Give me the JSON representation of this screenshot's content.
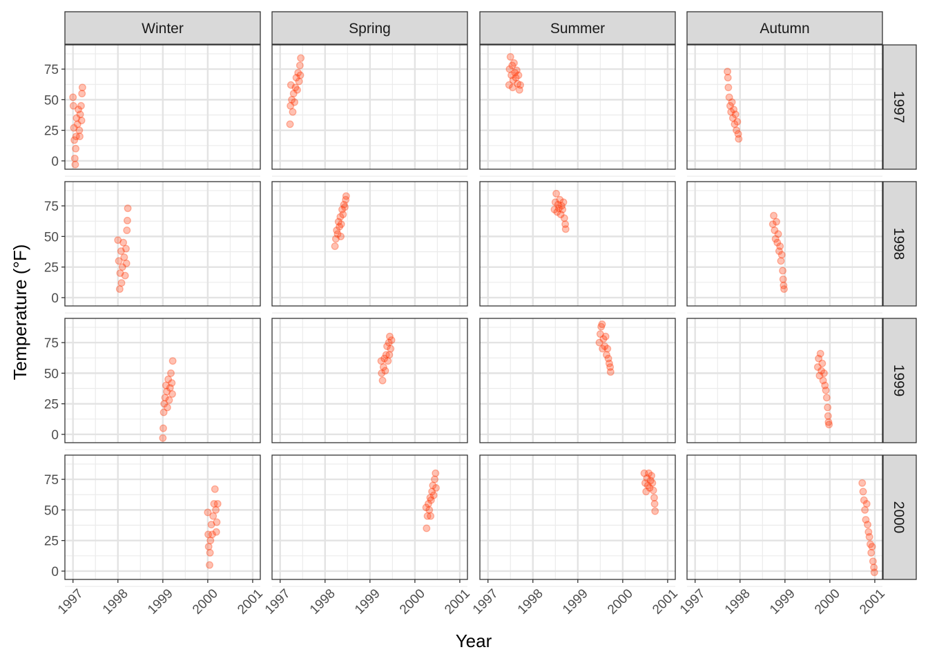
{
  "chart_data": {
    "type": "scatter",
    "title": "",
    "xlabel": "Year",
    "ylabel": "Temperature (°F)",
    "xlim": [
      1996.82,
      2001.17
    ],
    "ylim": [
      -6.8,
      94.8
    ],
    "x_ticks": [
      "1997",
      "1998",
      "1999",
      "2000",
      "2001"
    ],
    "y_ticks": [
      "0",
      "25",
      "50",
      "75"
    ],
    "grid": true,
    "point_color": "#ff3300",
    "point_alpha": 0.3,
    "facet_columns": [
      "Winter",
      "Spring",
      "Summer",
      "Autumn"
    ],
    "facet_rows": [
      "1997",
      "1998",
      "1999",
      "2000"
    ],
    "facets": [
      {
        "row": "1997",
        "col": "Winter",
        "points": [
          [
            1997.0,
            52
          ],
          [
            1997.01,
            45
          ],
          [
            1997.02,
            27
          ],
          [
            1997.03,
            17
          ],
          [
            1997.04,
            2
          ],
          [
            1997.05,
            -3
          ],
          [
            1997.06,
            10
          ],
          [
            1997.07,
            20
          ],
          [
            1997.08,
            35
          ],
          [
            1997.1,
            30
          ],
          [
            1997.12,
            42
          ],
          [
            1997.14,
            25
          ],
          [
            1997.16,
            38
          ],
          [
            1997.18,
            45
          ],
          [
            1997.2,
            55
          ],
          [
            1997.21,
            60
          ],
          [
            1997.19,
            33
          ],
          [
            1997.15,
            20
          ]
        ]
      },
      {
        "row": "1997",
        "col": "Spring",
        "points": [
          [
            1997.22,
            30
          ],
          [
            1997.23,
            45
          ],
          [
            1997.24,
            62
          ],
          [
            1997.26,
            50
          ],
          [
            1997.28,
            40
          ],
          [
            1997.3,
            55
          ],
          [
            1997.32,
            48
          ],
          [
            1997.34,
            60
          ],
          [
            1997.36,
            68
          ],
          [
            1997.38,
            58
          ],
          [
            1997.4,
            72
          ],
          [
            1997.42,
            65
          ],
          [
            1997.44,
            78
          ],
          [
            1997.46,
            84
          ],
          [
            1997.45,
            70
          ]
        ]
      },
      {
        "row": "1997",
        "col": "Summer",
        "points": [
          [
            1997.47,
            62
          ],
          [
            1997.48,
            75
          ],
          [
            1997.5,
            85
          ],
          [
            1997.52,
            70
          ],
          [
            1997.54,
            78
          ],
          [
            1997.56,
            66
          ],
          [
            1997.58,
            80
          ],
          [
            1997.6,
            72
          ],
          [
            1997.62,
            68
          ],
          [
            1997.64,
            74
          ],
          [
            1997.66,
            63
          ],
          [
            1997.68,
            70
          ],
          [
            1997.7,
            58
          ],
          [
            1997.72,
            62
          ],
          [
            1997.55,
            60
          ]
        ]
      },
      {
        "row": "1997",
        "col": "Autumn",
        "points": [
          [
            1997.72,
            73
          ],
          [
            1997.73,
            68
          ],
          [
            1997.74,
            60
          ],
          [
            1997.76,
            52
          ],
          [
            1997.78,
            45
          ],
          [
            1997.8,
            40
          ],
          [
            1997.82,
            48
          ],
          [
            1997.84,
            35
          ],
          [
            1997.86,
            42
          ],
          [
            1997.88,
            30
          ],
          [
            1997.9,
            38
          ],
          [
            1997.92,
            25
          ],
          [
            1997.94,
            32
          ],
          [
            1997.96,
            22
          ],
          [
            1997.97,
            18
          ]
        ]
      },
      {
        "row": "1998",
        "col": "Winter",
        "points": [
          [
            1998.0,
            47
          ],
          [
            1998.02,
            30
          ],
          [
            1998.04,
            7
          ],
          [
            1998.05,
            20
          ],
          [
            1998.07,
            38
          ],
          [
            1998.1,
            25
          ],
          [
            1998.12,
            45
          ],
          [
            1998.14,
            33
          ],
          [
            1998.16,
            18
          ],
          [
            1998.18,
            40
          ],
          [
            1998.2,
            55
          ],
          [
            1998.21,
            63
          ],
          [
            1998.22,
            73
          ],
          [
            1998.19,
            28
          ],
          [
            1998.08,
            12
          ]
        ]
      },
      {
        "row": "1998",
        "col": "Spring",
        "points": [
          [
            1998.22,
            42
          ],
          [
            1998.24,
            48
          ],
          [
            1998.26,
            55
          ],
          [
            1998.28,
            52
          ],
          [
            1998.3,
            62
          ],
          [
            1998.32,
            58
          ],
          [
            1998.34,
            66
          ],
          [
            1998.36,
            60
          ],
          [
            1998.38,
            72
          ],
          [
            1998.4,
            68
          ],
          [
            1998.42,
            76
          ],
          [
            1998.44,
            74
          ],
          [
            1998.46,
            80
          ],
          [
            1998.47,
            83
          ],
          [
            1998.35,
            50
          ]
        ]
      },
      {
        "row": "1998",
        "col": "Summer",
        "points": [
          [
            1998.48,
            72
          ],
          [
            1998.5,
            78
          ],
          [
            1998.52,
            85
          ],
          [
            1998.54,
            70
          ],
          [
            1998.56,
            76
          ],
          [
            1998.58,
            73
          ],
          [
            1998.6,
            80
          ],
          [
            1998.62,
            68
          ],
          [
            1998.64,
            75
          ],
          [
            1998.66,
            72
          ],
          [
            1998.68,
            78
          ],
          [
            1998.7,
            65
          ],
          [
            1998.72,
            60
          ],
          [
            1998.73,
            56
          ]
        ]
      },
      {
        "row": "1998",
        "col": "Autumn",
        "points": [
          [
            1998.73,
            60
          ],
          [
            1998.75,
            67
          ],
          [
            1998.77,
            55
          ],
          [
            1998.79,
            48
          ],
          [
            1998.81,
            62
          ],
          [
            1998.83,
            45
          ],
          [
            1998.85,
            52
          ],
          [
            1998.87,
            38
          ],
          [
            1998.89,
            42
          ],
          [
            1998.91,
            30
          ],
          [
            1998.93,
            35
          ],
          [
            1998.95,
            22
          ],
          [
            1998.96,
            15
          ],
          [
            1998.97,
            10
          ],
          [
            1998.98,
            7
          ]
        ]
      },
      {
        "row": "1999",
        "col": "Winter",
        "points": [
          [
            1999.0,
            -3
          ],
          [
            1999.01,
            5
          ],
          [
            1999.02,
            18
          ],
          [
            1999.03,
            25
          ],
          [
            1999.05,
            30
          ],
          [
            1999.07,
            40
          ],
          [
            1999.09,
            35
          ],
          [
            1999.1,
            22
          ],
          [
            1999.12,
            45
          ],
          [
            1999.14,
            28
          ],
          [
            1999.16,
            38
          ],
          [
            1999.18,
            50
          ],
          [
            1999.2,
            42
          ],
          [
            1999.22,
            60
          ],
          [
            1999.21,
            33
          ]
        ]
      },
      {
        "row": "1999",
        "col": "Spring",
        "points": [
          [
            1999.25,
            60
          ],
          [
            1999.26,
            50
          ],
          [
            1999.28,
            44
          ],
          [
            1999.3,
            55
          ],
          [
            1999.32,
            62
          ],
          [
            1999.34,
            52
          ],
          [
            1999.36,
            65
          ],
          [
            1999.38,
            72
          ],
          [
            1999.4,
            60
          ],
          [
            1999.42,
            75
          ],
          [
            1999.44,
            80
          ],
          [
            1999.46,
            70
          ],
          [
            1999.48,
            77
          ],
          [
            1999.43,
            65
          ]
        ]
      },
      {
        "row": "1999",
        "col": "Summer",
        "points": [
          [
            1999.48,
            75
          ],
          [
            1999.5,
            82
          ],
          [
            1999.52,
            88
          ],
          [
            1999.54,
            90
          ],
          [
            1999.55,
            70
          ],
          [
            1999.57,
            78
          ],
          [
            1999.6,
            72
          ],
          [
            1999.62,
            80
          ],
          [
            1999.64,
            65
          ],
          [
            1999.66,
            70
          ],
          [
            1999.68,
            62
          ],
          [
            1999.7,
            58
          ],
          [
            1999.72,
            55
          ],
          [
            1999.73,
            51
          ]
        ]
      },
      {
        "row": "1999",
        "col": "Autumn",
        "points": [
          [
            1999.73,
            55
          ],
          [
            1999.75,
            62
          ],
          [
            1999.77,
            48
          ],
          [
            1999.79,
            66
          ],
          [
            1999.81,
            52
          ],
          [
            1999.83,
            58
          ],
          [
            1999.85,
            44
          ],
          [
            1999.87,
            50
          ],
          [
            1999.89,
            40
          ],
          [
            1999.91,
            36
          ],
          [
            1999.93,
            30
          ],
          [
            1999.95,
            22
          ],
          [
            1999.96,
            15
          ],
          [
            1999.97,
            10
          ],
          [
            1999.98,
            8
          ]
        ]
      },
      {
        "row": "2000",
        "col": "Winter",
        "points": [
          [
            2000.0,
            48
          ],
          [
            2000.01,
            30
          ],
          [
            2000.02,
            20
          ],
          [
            2000.04,
            5
          ],
          [
            2000.06,
            25
          ],
          [
            2000.08,
            38
          ],
          [
            2000.1,
            30
          ],
          [
            2000.12,
            45
          ],
          [
            2000.14,
            55
          ],
          [
            2000.16,
            67
          ],
          [
            2000.18,
            50
          ],
          [
            2000.2,
            40
          ],
          [
            2000.22,
            55
          ],
          [
            2000.19,
            32
          ],
          [
            2000.05,
            15
          ]
        ]
      },
      {
        "row": "2000",
        "col": "Spring",
        "points": [
          [
            2000.25,
            52
          ],
          [
            2000.26,
            35
          ],
          [
            2000.28,
            45
          ],
          [
            2000.3,
            55
          ],
          [
            2000.32,
            50
          ],
          [
            2000.34,
            60
          ],
          [
            2000.36,
            58
          ],
          [
            2000.38,
            65
          ],
          [
            2000.4,
            70
          ],
          [
            2000.42,
            62
          ],
          [
            2000.44,
            75
          ],
          [
            2000.46,
            80
          ],
          [
            2000.47,
            68
          ],
          [
            2000.35,
            45
          ]
        ]
      },
      {
        "row": "2000",
        "col": "Summer",
        "points": [
          [
            2000.48,
            80
          ],
          [
            2000.5,
            72
          ],
          [
            2000.52,
            65
          ],
          [
            2000.54,
            76
          ],
          [
            2000.56,
            70
          ],
          [
            2000.58,
            80
          ],
          [
            2000.6,
            68
          ],
          [
            2000.62,
            74
          ],
          [
            2000.64,
            78
          ],
          [
            2000.66,
            72
          ],
          [
            2000.68,
            66
          ],
          [
            2000.7,
            60
          ],
          [
            2000.71,
            55
          ],
          [
            2000.72,
            49
          ]
        ]
      },
      {
        "row": "2000",
        "col": "Autumn",
        "points": [
          [
            2000.72,
            72
          ],
          [
            2000.74,
            65
          ],
          [
            2000.76,
            58
          ],
          [
            2000.78,
            50
          ],
          [
            2000.8,
            42
          ],
          [
            2000.82,
            55
          ],
          [
            2000.84,
            38
          ],
          [
            2000.86,
            32
          ],
          [
            2000.88,
            28
          ],
          [
            2000.9,
            22
          ],
          [
            2000.92,
            15
          ],
          [
            2000.94,
            20
          ],
          [
            2000.96,
            8
          ],
          [
            2000.98,
            3
          ],
          [
            2000.99,
            -1
          ]
        ]
      }
    ]
  }
}
